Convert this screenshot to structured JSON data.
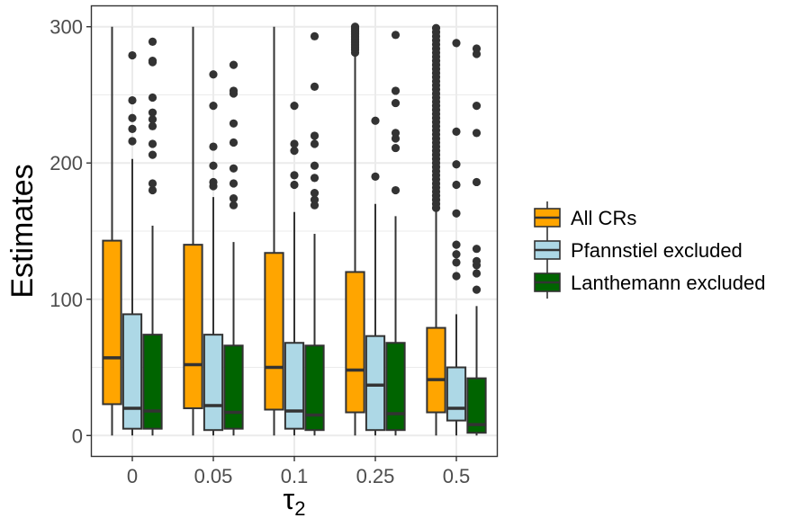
{
  "chart_data": {
    "type": "boxplot",
    "xlabel": "τ2",
    "ylabel": "Estimates",
    "ylim": [
      -15,
      315
    ],
    "yticks": [
      0,
      100,
      200,
      300
    ],
    "categories": [
      "0",
      "0.05",
      "0.1",
      "0.25",
      "0.5"
    ],
    "grid": true,
    "legend_position": "right",
    "series": [
      {
        "name": "All CRs",
        "color": "#FFA500",
        "boxes": [
          {
            "min": 0,
            "q1": 23,
            "median": 57,
            "q3": 143,
            "max": 300,
            "outliers": []
          },
          {
            "min": 0,
            "q1": 20,
            "median": 52,
            "q3": 140,
            "max": 300,
            "outliers": []
          },
          {
            "min": 0,
            "q1": 19,
            "median": 50,
            "q3": 134,
            "max": 300,
            "outliers": []
          },
          {
            "min": 0,
            "q1": 17,
            "median": 48,
            "q3": 120,
            "max": 280,
            "outliers": [
              281,
              283,
              284,
              285,
              286,
              287,
              288,
              289,
              290,
              291,
              292,
              293,
              294,
              295,
              296,
              297,
              298,
              299,
              300
            ]
          },
          {
            "min": 0,
            "q1": 17,
            "median": 41,
            "q3": 79,
            "max": 165,
            "outliers": [
              167,
              170,
              173,
              176,
              179,
              182,
              185,
              188,
              191,
              194,
              197,
              200,
              203,
              206,
              209,
              212,
              215,
              218,
              221,
              224,
              227,
              230,
              233,
              236,
              239,
              242,
              245,
              248,
              251,
              254,
              257,
              260,
              263,
              266,
              269,
              272,
              275,
              278,
              281,
              284,
              287,
              290,
              293,
              296,
              299
            ]
          }
        ]
      },
      {
        "name": "Pfannstiel excluded",
        "color": "#ADD8E6",
        "boxes": [
          {
            "min": 0,
            "q1": 5,
            "median": 20,
            "q3": 89,
            "max": 203,
            "outliers": [
              216,
              225,
              233,
              246,
              279
            ]
          },
          {
            "min": 0,
            "q1": 4,
            "median": 22,
            "q3": 74,
            "max": 175,
            "outliers": [
              183,
              186,
              198,
              212,
              242,
              265
            ]
          },
          {
            "min": 0,
            "q1": 5,
            "median": 18,
            "q3": 68,
            "max": 164,
            "outliers": [
              184,
              191,
              209,
              214,
              242
            ]
          },
          {
            "min": 0,
            "q1": 4,
            "median": 37,
            "q3": 73,
            "max": 170,
            "outliers": [
              190,
              231
            ]
          },
          {
            "min": 0,
            "q1": 11,
            "median": 20,
            "q3": 50,
            "max": 89,
            "outliers": [
              117,
              127,
              133,
              140,
              163,
              184,
              199,
              223,
              288
            ]
          }
        ]
      },
      {
        "name": "Lanthemann excluded",
        "color": "#006400",
        "boxes": [
          {
            "min": 0,
            "q1": 5,
            "median": 18,
            "q3": 74,
            "max": 154,
            "outliers": [
              180,
              185,
              206,
              214,
              227,
              232,
              237,
              248,
              274,
              275,
              289
            ]
          },
          {
            "min": 0,
            "q1": 5,
            "median": 17,
            "q3": 66,
            "max": 142,
            "outliers": [
              169,
              174,
              185,
              196,
              215,
              229,
              251,
              253,
              272
            ]
          },
          {
            "min": 0,
            "q1": 4,
            "median": 15,
            "q3": 66,
            "max": 148,
            "outliers": [
              169,
              173,
              178,
              189,
              198,
              214,
              220,
              256,
              293
            ]
          },
          {
            "min": 0,
            "q1": 4,
            "median": 16,
            "q3": 68,
            "max": 161,
            "outliers": [
              180,
              211,
              218,
              222,
              244,
              253,
              294
            ]
          },
          {
            "min": 0,
            "q1": 2,
            "median": 8,
            "q3": 42,
            "max": 95,
            "outliers": [
              107,
              119,
              125,
              128,
              137,
              186,
              222,
              242,
              280,
              284
            ]
          }
        ]
      }
    ]
  }
}
